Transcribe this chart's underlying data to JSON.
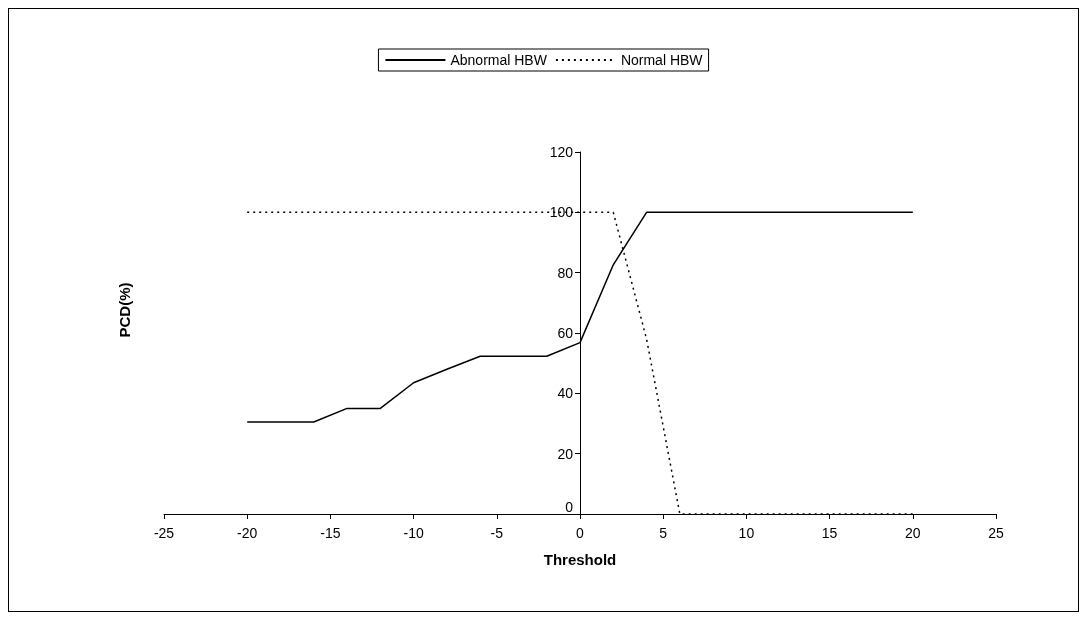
{
  "chart_data": {
    "type": "line",
    "xlabel": "Threshold",
    "ylabel": "PCD(%)",
    "x": [
      -20,
      -18,
      -16,
      -14,
      -12,
      -10,
      -8,
      -6,
      -4,
      -2,
      0,
      2,
      4,
      6,
      8,
      10,
      12,
      14,
      16,
      18,
      20
    ],
    "series": [
      {
        "name": "Abnormal HBW",
        "color": "#000000",
        "line_style": "solid",
        "values": [
          30.5,
          30.5,
          30.5,
          35,
          35,
          43.5,
          48,
          52.3,
          52.3,
          52.3,
          56.8,
          82.6,
          100,
          100,
          100,
          100,
          100,
          100,
          100,
          100,
          100
        ]
      },
      {
        "name": "Normal HBW",
        "color": "#000000",
        "line_style": "dotted",
        "values": [
          100,
          100,
          100,
          100,
          100,
          100,
          100,
          100,
          100,
          100,
          100,
          100,
          58,
          0,
          0,
          0,
          0,
          0,
          0,
          0,
          0
        ]
      }
    ],
    "xlim": [
      -25,
      25
    ],
    "xticks": [
      -25,
      -20,
      -15,
      -10,
      -5,
      0,
      5,
      10,
      15,
      20,
      25
    ],
    "ylim": [
      0,
      120
    ],
    "yticks": [
      0,
      20,
      40,
      60,
      80,
      100,
      120
    ],
    "grid": false,
    "legend": "top",
    "marker": "none"
  }
}
